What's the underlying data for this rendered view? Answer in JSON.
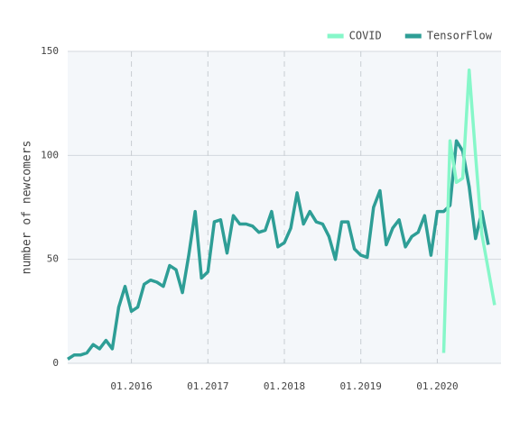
{
  "chart_data": {
    "type": "line",
    "ylabel": "number of newcomers",
    "ylim": [
      0,
      150
    ],
    "yticks": [
      0,
      50,
      100,
      150
    ],
    "xlim": [
      "03.2015",
      "11.2020"
    ],
    "xticks": [
      "01.2016",
      "01.2017",
      "01.2018",
      "01.2019",
      "01.2020"
    ],
    "grid": true,
    "legend": "top-right",
    "series": [
      {
        "name": "COVID",
        "color": "#86f7c9",
        "x": [
          "02.2020",
          "03.2020",
          "04.2020",
          "05.2020",
          "06.2020",
          "07.2020",
          "08.2020",
          "09.2020",
          "10.2020"
        ],
        "values": [
          5,
          107,
          87,
          89,
          141,
          100,
          62,
          45,
          28
        ]
      },
      {
        "name": "TensorFlow",
        "color": "#2e9e96",
        "x": [
          "03.2015",
          "04.2015",
          "05.2015",
          "06.2015",
          "07.2015",
          "08.2015",
          "09.2015",
          "10.2015",
          "11.2015",
          "12.2015",
          "01.2016",
          "02.2016",
          "03.2016",
          "04.2016",
          "05.2016",
          "06.2016",
          "07.2016",
          "08.2016",
          "09.2016",
          "10.2016",
          "11.2016",
          "12.2016",
          "01.2017",
          "02.2017",
          "03.2017",
          "04.2017",
          "05.2017",
          "06.2017",
          "07.2017",
          "08.2017",
          "09.2017",
          "10.2017",
          "11.2017",
          "12.2017",
          "01.2018",
          "02.2018",
          "03.2018",
          "04.2018",
          "05.2018",
          "06.2018",
          "07.2018",
          "08.2018",
          "09.2018",
          "10.2018",
          "11.2018",
          "12.2018",
          "01.2019",
          "02.2019",
          "03.2019",
          "04.2019",
          "05.2019",
          "06.2019",
          "07.2019",
          "08.2019",
          "09.2019",
          "10.2019",
          "11.2019",
          "12.2019",
          "01.2020",
          "02.2020",
          "03.2020",
          "04.2020",
          "05.2020",
          "06.2020",
          "07.2020",
          "08.2020",
          "09.2020"
        ],
        "values": [
          2,
          4,
          4,
          5,
          9,
          7,
          11,
          7,
          27,
          37,
          25,
          27,
          38,
          40,
          39,
          37,
          47,
          45,
          34,
          52,
          73,
          41,
          44,
          68,
          69,
          53,
          71,
          67,
          67,
          66,
          63,
          64,
          73,
          56,
          58,
          65,
          82,
          67,
          73,
          68,
          67,
          61,
          50,
          68,
          68,
          55,
          52,
          51,
          75,
          83,
          57,
          65,
          69,
          56,
          61,
          63,
          71,
          52,
          73,
          73,
          76,
          107,
          102,
          85,
          60,
          73,
          57
        ]
      }
    ]
  }
}
